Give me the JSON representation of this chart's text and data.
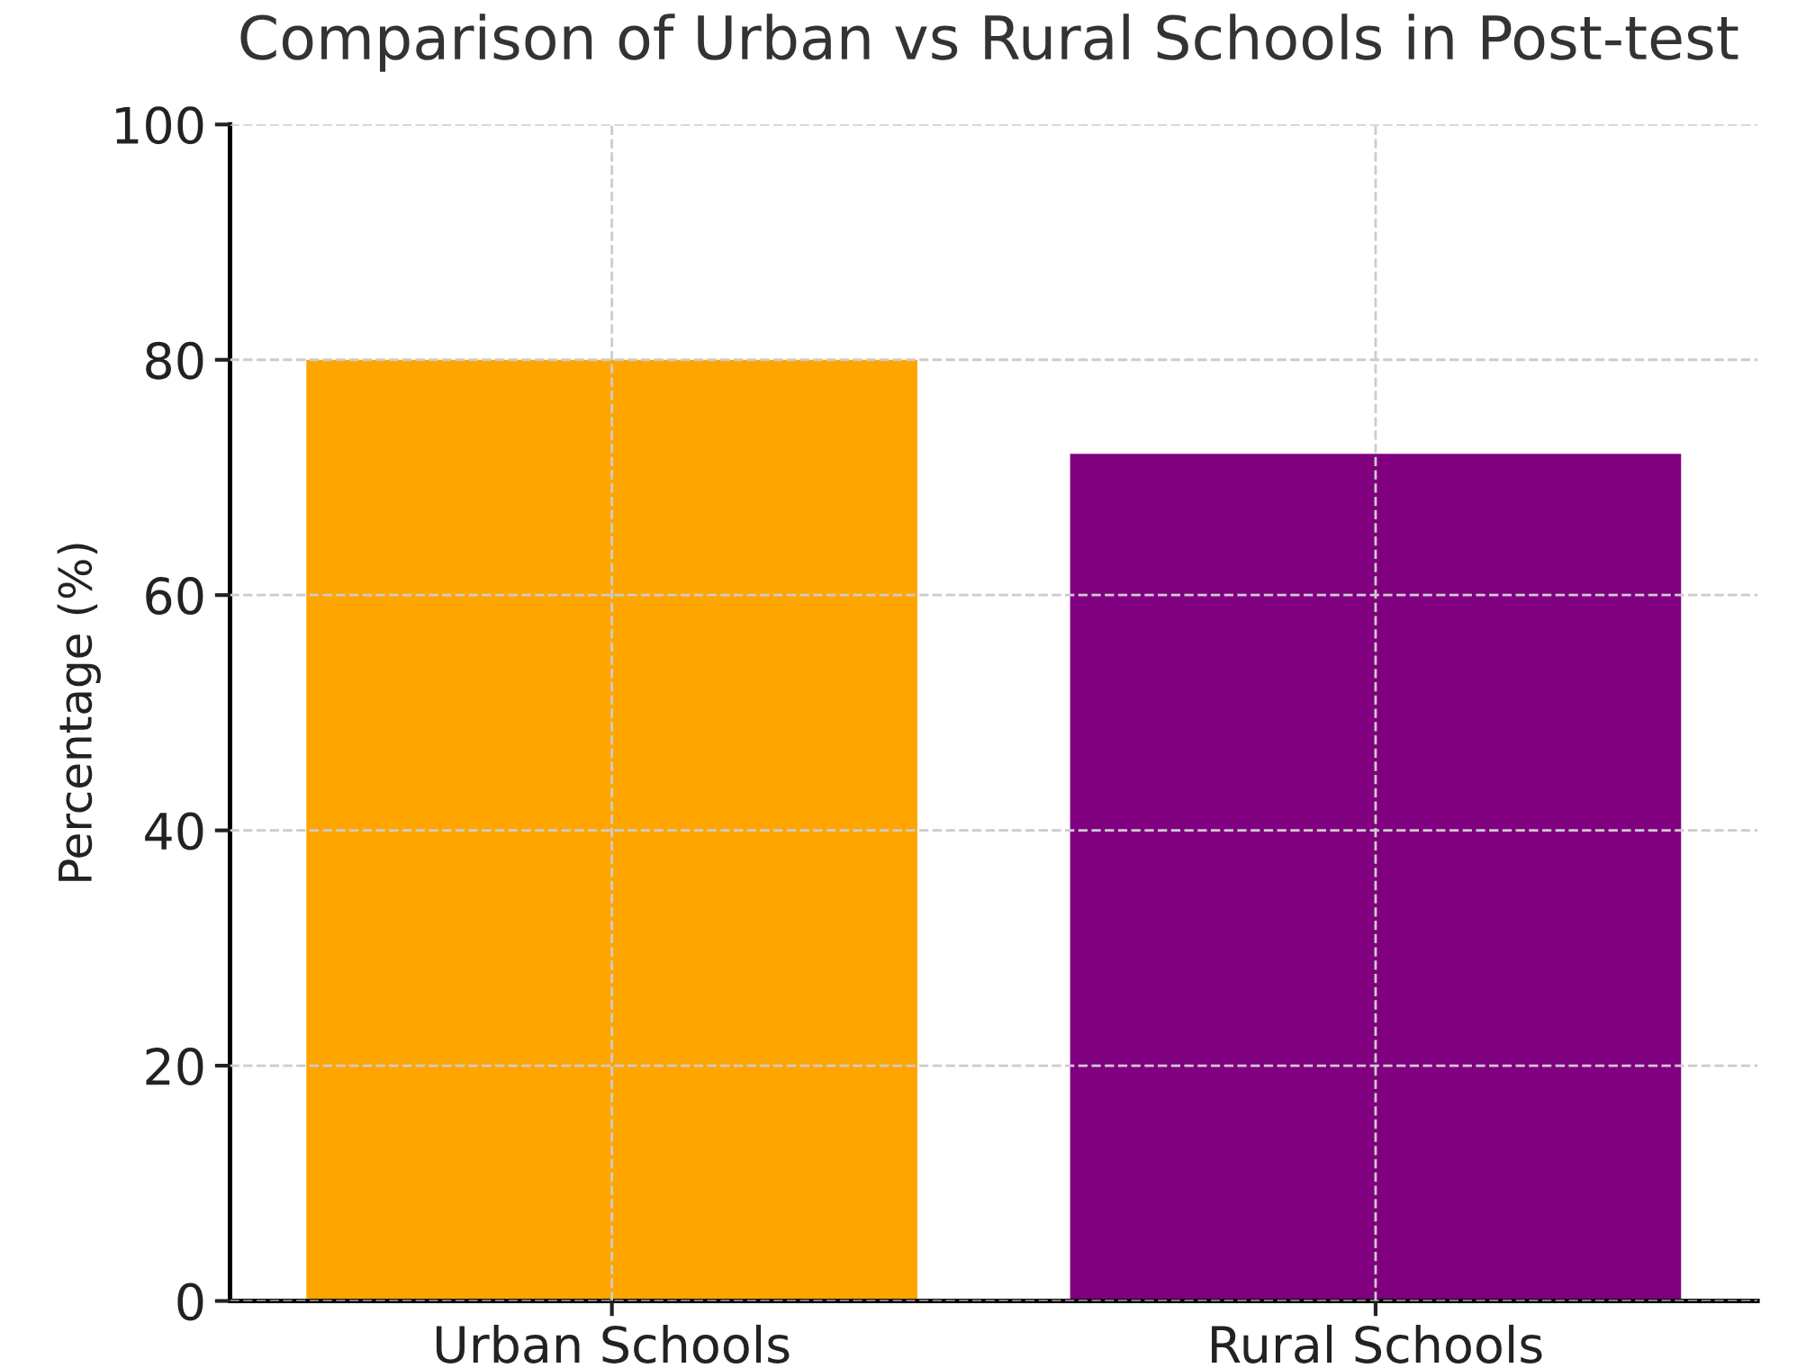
{
  "chart_data": {
    "type": "bar",
    "title": "Comparison of Urban vs Rural Schools in Post-test",
    "ylabel": "Percentage (%)",
    "categories": [
      "Urban Schools",
      "Rural Schools"
    ],
    "values": [
      80,
      72
    ],
    "colors": [
      "#ffa500",
      "#800080"
    ],
    "ylim": [
      0,
      100
    ],
    "yticks": [
      0,
      20,
      40,
      60,
      80,
      100
    ],
    "grid": true
  }
}
